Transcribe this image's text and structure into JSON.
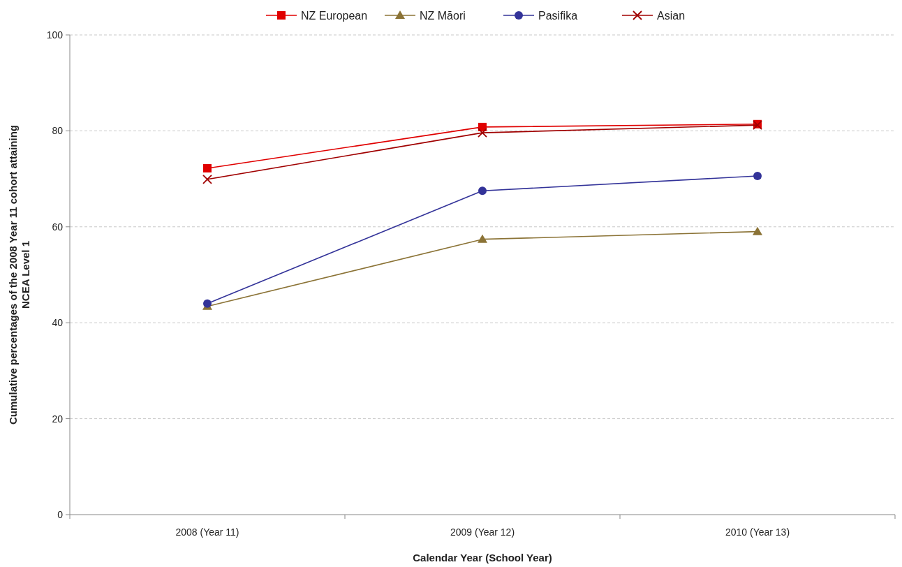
{
  "chart_data": {
    "type": "line",
    "xlabel": "Calendar Year (School Year)",
    "ylabel": "Cumulative percentages of the 2008 Year 11 cohort attaining NCEA Level 1",
    "categories": [
      "2008 (Year 11)",
      "2009 (Year 12)",
      "2010 (Year 13)"
    ],
    "series": [
      {
        "name": "NZ European",
        "color": "#e00000",
        "marker": "square",
        "values": [
          72.2,
          80.8,
          81.4
        ]
      },
      {
        "name": "NZ Māori",
        "color": "#8b7336",
        "marker": "triangle",
        "values": [
          43.4,
          57.4,
          59.0
        ]
      },
      {
        "name": "Pasifika",
        "color": "#333399",
        "marker": "circle",
        "values": [
          44.0,
          67.5,
          70.6
        ]
      },
      {
        "name": "Asian",
        "color": "#a00000",
        "marker": "cross",
        "values": [
          69.9,
          79.6,
          81.2
        ]
      }
    ],
    "ylim": [
      0,
      100
    ],
    "yticks": [
      0,
      20,
      40,
      60,
      80,
      100
    ],
    "grid": "y",
    "legend": "top"
  }
}
